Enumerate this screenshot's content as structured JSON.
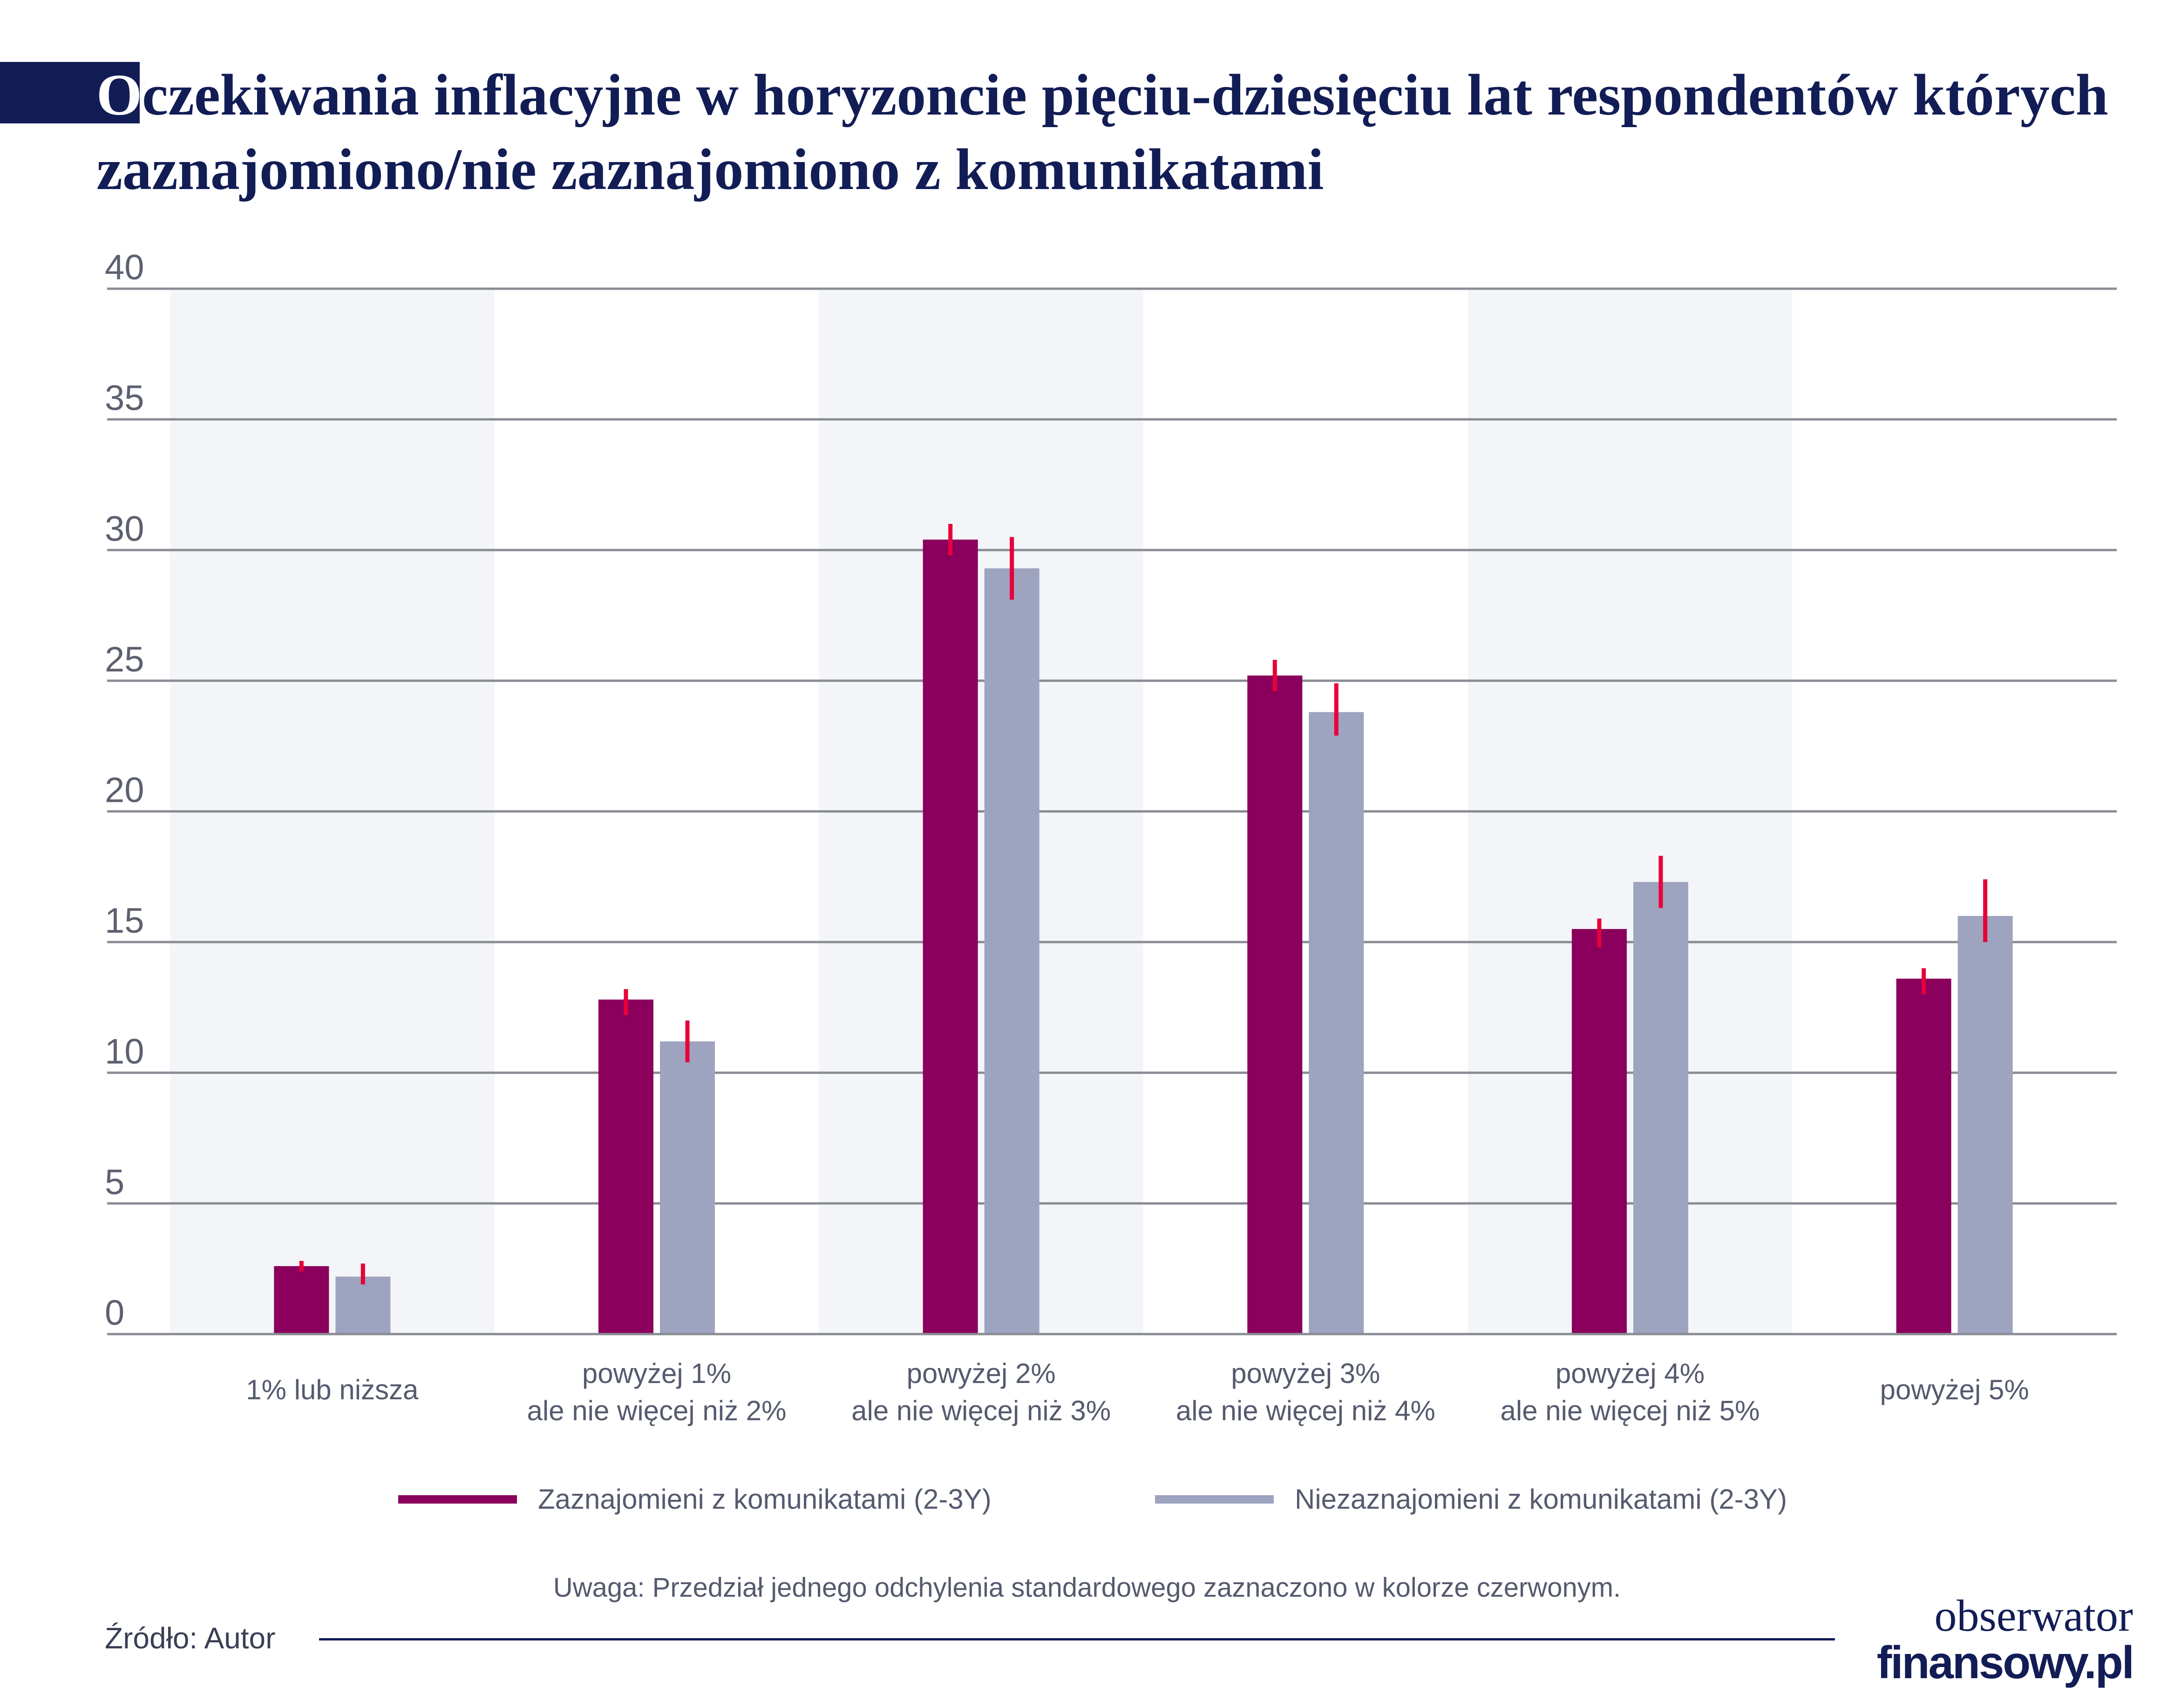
{
  "title": {
    "first_letter": "O",
    "text": "czekiwania inflacyjne w horyzoncie pięciu-dziesięciu lat respondentów których zaznajomiono/nie zaznajomiono z komunikatami"
  },
  "note": "Uwaga: Przedział jednego odchylenia standardowego zaznaczono w kolorze czerwonym.",
  "source": "Źródło: Autor",
  "logo": {
    "line1": "obserwator",
    "line2": "finansowy.pl"
  },
  "colors": {
    "title": "#121d56",
    "series_1": "#8a005c",
    "series_2": "#9ea3bf",
    "error_bar": "#e8003a",
    "band": "#f4f5f8",
    "grid": "#8a8c94"
  },
  "chart_data": {
    "type": "bar",
    "categories": [
      [
        "1% lub niższa"
      ],
      [
        "powyżej 1%",
        "ale nie więcej niż 2%"
      ],
      [
        "powyżej 2%",
        "ale nie więcej niż 3%"
      ],
      [
        "powyżej 3%",
        "ale nie więcej niż 4%"
      ],
      [
        "powyżej 4%",
        "ale nie więcej niż 5%"
      ],
      [
        "powyżej 5%"
      ]
    ],
    "series": [
      {
        "name": "Zaznajomieni z komunikatami (2-3Y)",
        "values": [
          2.6,
          12.8,
          30.4,
          25.2,
          15.5,
          13.6
        ],
        "err_low": [
          2.4,
          12.2,
          29.8,
          24.6,
          14.8,
          13.0
        ],
        "err_high": [
          2.8,
          13.2,
          31.0,
          25.8,
          15.9,
          14.0
        ]
      },
      {
        "name": "Niezaznajomieni z komunikatami (2-3Y)",
        "values": [
          2.2,
          11.2,
          29.3,
          23.8,
          17.3,
          16.0
        ],
        "err_low": [
          1.9,
          10.4,
          28.1,
          22.9,
          16.3,
          15.0
        ],
        "err_high": [
          2.7,
          12.0,
          30.5,
          24.9,
          18.3,
          17.4
        ]
      }
    ],
    "yticks": [
      "0",
      "5",
      "10",
      "15",
      "20",
      "25",
      "30",
      "35",
      "40"
    ],
    "ylim": [
      0,
      40
    ],
    "grid": true,
    "alternating_bands": true,
    "legend_position": "bottom"
  }
}
